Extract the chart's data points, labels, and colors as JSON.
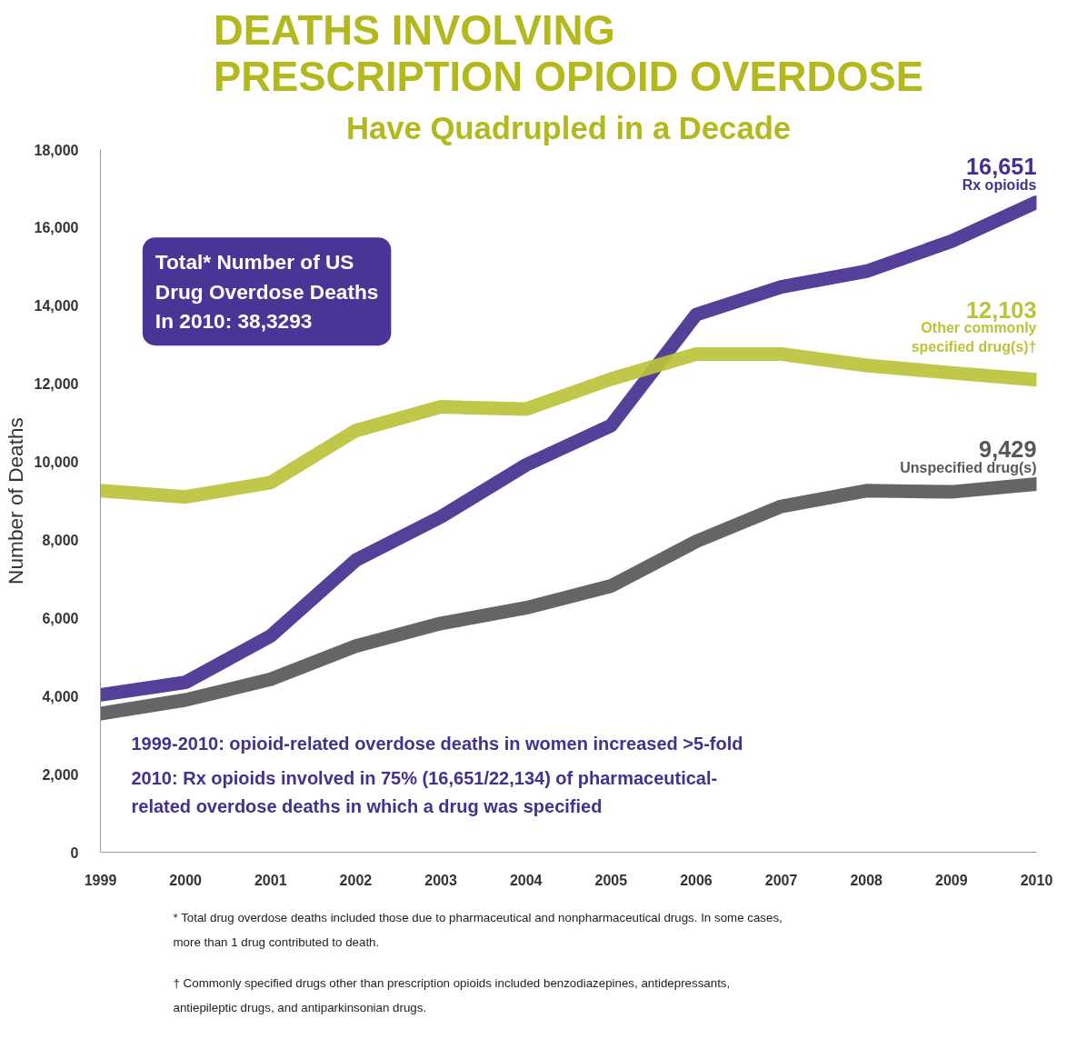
{
  "chart_data": {
    "type": "line",
    "title": "DEATHS INVOLVING PRESCRIPTION OPIOID OVERDOSE",
    "subtitle": "Have Quadrupled in a Decade",
    "ylabel": "Number of Deaths",
    "x": [
      1999,
      2000,
      2001,
      2002,
      2003,
      2004,
      2005,
      2006,
      2007,
      2008,
      2009,
      2010
    ],
    "xlim": [
      1999,
      2010
    ],
    "xticks": [
      1999,
      2000,
      2001,
      2002,
      2003,
      2004,
      2005,
      2006,
      2007,
      2008,
      2009,
      2010
    ],
    "ylim": [
      0,
      18000
    ],
    "yticks": [
      0,
      {
        "value": 2000,
        "label": "2,000"
      },
      {
        "value": 4000,
        "label": "4,000"
      },
      {
        "value": 6000,
        "label": "6,000"
      },
      {
        "value": 8000,
        "label": "8,000"
      },
      {
        "value": 10000,
        "label": "10,000"
      },
      {
        "value": 12000,
        "label": "12,000"
      },
      {
        "value": 14000,
        "label": "14,000"
      },
      {
        "value": 16000,
        "label": "16,000"
      },
      {
        "value": 18000,
        "label": "18,000"
      }
    ],
    "series": [
      {
        "name": "Unspecified drug(s)",
        "color": "#58585a",
        "values": [
          3550,
          3900,
          4430,
          5280,
          5860,
          6260,
          6820,
          7960,
          8860,
          9260,
          9230,
          9429
        ],
        "value_labels": [
          null,
          null,
          null,
          null,
          null,
          null,
          null,
          null,
          null,
          null,
          null,
          "9,429"
        ]
      },
      {
        "name": "Rx opioids",
        "color": "#45308f",
        "values": [
          4030,
          4350,
          5540,
          7480,
          8590,
          9920,
          10930,
          13770,
          14480,
          14880,
          15650,
          16651
        ],
        "value_labels": [
          null,
          null,
          null,
          null,
          null,
          null,
          null,
          null,
          null,
          null,
          null,
          "16,651"
        ]
      },
      {
        "name": "Other commonly specified drug(s)†",
        "color": "#bcc23a",
        "values": [
          9260,
          9100,
          9470,
          10800,
          11410,
          11350,
          12120,
          12760,
          12760,
          12470,
          12280,
          12103
        ],
        "value_labels": [
          null,
          null,
          null,
          null,
          null,
          null,
          null,
          null,
          null,
          null,
          null,
          "12,103"
        ]
      }
    ],
    "grid": false,
    "marker": "none",
    "line_style": "solid",
    "annotations": [
      "Total* Number of US Drug Overdose Deaths In 2010: 38,3293",
      "1999-2010: opioid-related overdose deaths in women increased >5-fold",
      "2010: Rx opioids involved in 75% (16,651/22,134) of pharmaceutical-related overdose deaths in which a drug was specified",
      "* Total drug overdose deaths included those due to pharmaceutical and nonpharmaceutical drugs. In some cases, more than 1 drug contributed to death.",
      "† Commonly specified drugs other than prescription opioids included benzodiazepines, antidepressants, antiepileptic drugs, and antiparkinsonian drugs."
    ]
  }
}
